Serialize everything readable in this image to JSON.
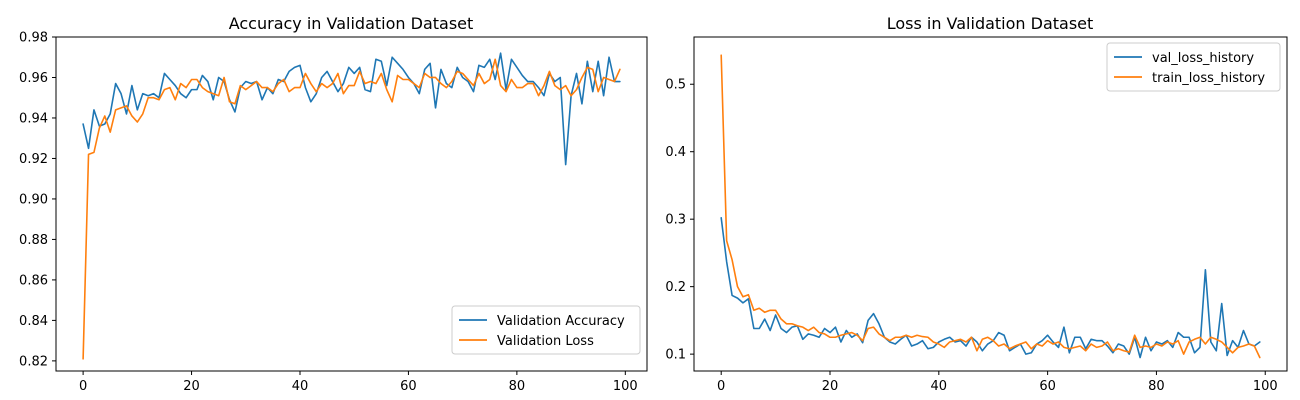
{
  "colors": {
    "blue": "#1f77b4",
    "orange": "#ff7f0e"
  },
  "chart_data": [
    {
      "type": "line",
      "title": "Accuracy in Validation Dataset",
      "xlabel": "",
      "ylabel": "",
      "xlim": [
        -5,
        104
      ],
      "ylim": [
        0.815,
        0.98
      ],
      "xticks": [
        0,
        20,
        40,
        60,
        80,
        100
      ],
      "xtick_labels": [
        "0",
        "20",
        "40",
        "60",
        "80",
        "100"
      ],
      "yticks": [
        0.82,
        0.84,
        0.86,
        0.88,
        0.9,
        0.92,
        0.94,
        0.96,
        0.98
      ],
      "ytick_labels": [
        "0.82",
        "0.84",
        "0.86",
        "0.88",
        "0.90",
        "0.92",
        "0.94",
        "0.96",
        "0.98"
      ],
      "grid": false,
      "legend_position": "lower-right",
      "series": [
        {
          "name": "Validation Accuracy",
          "color": "#1f77b4",
          "values": [
            0.937,
            0.925,
            0.944,
            0.936,
            0.937,
            0.942,
            0.957,
            0.952,
            0.942,
            0.956,
            0.944,
            0.952,
            0.951,
            0.952,
            0.95,
            0.962,
            0.959,
            0.956,
            0.952,
            0.95,
            0.954,
            0.954,
            0.961,
            0.958,
            0.949,
            0.96,
            0.958,
            0.949,
            0.943,
            0.955,
            0.958,
            0.957,
            0.958,
            0.949,
            0.955,
            0.952,
            0.959,
            0.958,
            0.963,
            0.965,
            0.966,
            0.955,
            0.948,
            0.952,
            0.96,
            0.963,
            0.958,
            0.953,
            0.957,
            0.965,
            0.962,
            0.965,
            0.954,
            0.953,
            0.969,
            0.968,
            0.956,
            0.97,
            0.967,
            0.964,
            0.96,
            0.957,
            0.952,
            0.964,
            0.967,
            0.945,
            0.964,
            0.957,
            0.955,
            0.965,
            0.96,
            0.958,
            0.953,
            0.966,
            0.965,
            0.969,
            0.959,
            0.972,
            0.954,
            0.969,
            0.965,
            0.961,
            0.958,
            0.958,
            0.955,
            0.951,
            0.962,
            0.958,
            0.96,
            0.917,
            0.951,
            0.962,
            0.947,
            0.968,
            0.953,
            0.968,
            0.951,
            0.97,
            0.958,
            0.958
          ]
        },
        {
          "name": "Validation Loss",
          "color": "#ff7f0e",
          "values": [
            0.821,
            0.922,
            0.923,
            0.935,
            0.941,
            0.933,
            0.944,
            0.945,
            0.946,
            0.941,
            0.938,
            0.942,
            0.95,
            0.95,
            0.949,
            0.954,
            0.955,
            0.949,
            0.957,
            0.955,
            0.959,
            0.959,
            0.955,
            0.953,
            0.952,
            0.951,
            0.96,
            0.948,
            0.947,
            0.956,
            0.954,
            0.956,
            0.958,
            0.955,
            0.955,
            0.953,
            0.957,
            0.959,
            0.953,
            0.955,
            0.955,
            0.962,
            0.957,
            0.953,
            0.957,
            0.955,
            0.957,
            0.962,
            0.952,
            0.956,
            0.956,
            0.963,
            0.957,
            0.958,
            0.957,
            0.962,
            0.954,
            0.948,
            0.961,
            0.959,
            0.959,
            0.957,
            0.955,
            0.962,
            0.96,
            0.96,
            0.957,
            0.955,
            0.958,
            0.963,
            0.962,
            0.959,
            0.956,
            0.962,
            0.957,
            0.959,
            0.969,
            0.956,
            0.953,
            0.959,
            0.955,
            0.955,
            0.957,
            0.957,
            0.951,
            0.956,
            0.963,
            0.956,
            0.954,
            0.956,
            0.951,
            0.954,
            0.96,
            0.965,
            0.964,
            0.953,
            0.96,
            0.959,
            0.958,
            0.964
          ]
        }
      ]
    },
    {
      "type": "line",
      "title": "Loss in Validation Dataset",
      "xlabel": "",
      "ylabel": "",
      "xlim": [
        -5,
        104
      ],
      "ylim": [
        0.075,
        0.57
      ],
      "xticks": [
        0,
        20,
        40,
        60,
        80,
        100
      ],
      "xtick_labels": [
        "0",
        "20",
        "40",
        "60",
        "80",
        "100"
      ],
      "yticks": [
        0.1,
        0.2,
        0.3,
        0.4,
        0.5
      ],
      "ytick_labels": [
        "0.1",
        "0.2",
        "0.3",
        "0.4",
        "0.5"
      ],
      "grid": false,
      "legend_position": "upper-right",
      "series": [
        {
          "name": "val_loss_history",
          "color": "#1f77b4",
          "values": [
            0.302,
            0.237,
            0.187,
            0.183,
            0.176,
            0.182,
            0.138,
            0.138,
            0.152,
            0.135,
            0.158,
            0.138,
            0.132,
            0.14,
            0.142,
            0.122,
            0.13,
            0.128,
            0.125,
            0.138,
            0.132,
            0.14,
            0.118,
            0.135,
            0.125,
            0.13,
            0.117,
            0.15,
            0.16,
            0.145,
            0.125,
            0.118,
            0.115,
            0.122,
            0.128,
            0.112,
            0.115,
            0.12,
            0.108,
            0.11,
            0.118,
            0.122,
            0.125,
            0.118,
            0.12,
            0.112,
            0.125,
            0.118,
            0.105,
            0.115,
            0.12,
            0.132,
            0.128,
            0.105,
            0.11,
            0.115,
            0.1,
            0.102,
            0.115,
            0.12,
            0.128,
            0.118,
            0.11,
            0.14,
            0.102,
            0.125,
            0.125,
            0.108,
            0.122,
            0.12,
            0.12,
            0.112,
            0.102,
            0.115,
            0.112,
            0.1,
            0.125,
            0.095,
            0.125,
            0.105,
            0.118,
            0.115,
            0.12,
            0.11,
            0.132,
            0.125,
            0.125,
            0.102,
            0.11,
            0.225,
            0.118,
            0.105,
            0.175,
            0.098,
            0.12,
            0.11,
            0.135,
            0.115,
            0.112,
            0.118
          ]
        },
        {
          "name": "train_loss_history",
          "color": "#ff7f0e",
          "values": [
            0.543,
            0.268,
            0.24,
            0.2,
            0.185,
            0.188,
            0.165,
            0.168,
            0.162,
            0.165,
            0.165,
            0.152,
            0.145,
            0.145,
            0.142,
            0.14,
            0.135,
            0.14,
            0.132,
            0.13,
            0.125,
            0.125,
            0.128,
            0.13,
            0.132,
            0.128,
            0.12,
            0.138,
            0.14,
            0.13,
            0.125,
            0.12,
            0.125,
            0.125,
            0.128,
            0.125,
            0.128,
            0.126,
            0.125,
            0.118,
            0.115,
            0.11,
            0.118,
            0.12,
            0.122,
            0.118,
            0.125,
            0.105,
            0.122,
            0.125,
            0.12,
            0.112,
            0.115,
            0.108,
            0.112,
            0.115,
            0.118,
            0.108,
            0.115,
            0.112,
            0.12,
            0.115,
            0.118,
            0.11,
            0.108,
            0.11,
            0.112,
            0.105,
            0.115,
            0.11,
            0.112,
            0.118,
            0.105,
            0.108,
            0.105,
            0.103,
            0.128,
            0.11,
            0.112,
            0.11,
            0.115,
            0.112,
            0.118,
            0.115,
            0.12,
            0.1,
            0.118,
            0.122,
            0.125,
            0.115,
            0.125,
            0.122,
            0.118,
            0.11,
            0.102,
            0.11,
            0.112,
            0.115,
            0.112,
            0.095
          ]
        }
      ]
    }
  ]
}
